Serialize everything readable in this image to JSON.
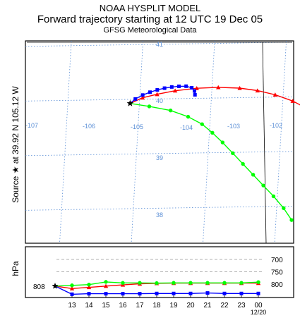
{
  "title": {
    "line1": "NOAA HYSPLIT MODEL",
    "line2": "Forward trajectory starting at 12 UTC 19 Dec 05",
    "line3": "GFSG Meteorological Data"
  },
  "side_label": "Source ★ at 39.92 N 105.12 W",
  "vertical_label": "hPa",
  "start_pressure_label": "808",
  "colors": {
    "red": "#ff0000",
    "blue": "#0000ff",
    "green": "#00ff00",
    "grid": "#5b8fd6",
    "level": "#999999"
  },
  "chart_data": [
    {
      "type": "line",
      "name": "trajectory-map",
      "lon_ticks": [
        "-107",
        "-106",
        "-105",
        "-104",
        "-103",
        "-102"
      ],
      "lat_ticks": [
        "41",
        "40",
        "39",
        "38"
      ],
      "source": {
        "lon": -105.12,
        "lat": 39.92
      },
      "series": [
        {
          "color": "red",
          "marker": "triangle",
          "points": [
            [
              -105.12,
              39.92
            ],
            [
              -104.95,
              40.02
            ],
            [
              -104.75,
              40.08
            ],
            [
              -104.5,
              40.14
            ],
            [
              -104.2,
              40.18
            ],
            [
              -103.9,
              40.19
            ],
            [
              -103.6,
              40.17
            ],
            [
              -103.35,
              40.12
            ],
            [
              -103.1,
              40.04
            ],
            [
              -102.85,
              39.92
            ],
            [
              -102.65,
              39.78
            ],
            [
              -102.5,
              39.62
            ],
            [
              -102.4,
              39.45
            ]
          ]
        },
        {
          "color": "blue",
          "marker": "square",
          "points": [
            [
              -105.12,
              39.92
            ],
            [
              -105.05,
              40.0
            ],
            [
              -104.95,
              40.07
            ],
            [
              -104.85,
              40.12
            ],
            [
              -104.75,
              40.16
            ],
            [
              -104.65,
              40.19
            ],
            [
              -104.55,
              40.21
            ],
            [
              -104.45,
              40.22
            ],
            [
              -104.35,
              40.22
            ],
            [
              -104.27,
              40.19
            ],
            [
              -104.23,
              40.13
            ],
            [
              -104.22,
              40.06
            ]
          ]
        },
        {
          "color": "green",
          "marker": "circle",
          "points": [
            [
              -105.12,
              39.92
            ],
            [
              -104.85,
              39.86
            ],
            [
              -104.55,
              39.78
            ],
            [
              -104.3,
              39.66
            ],
            [
              -104.1,
              39.52
            ],
            [
              -103.95,
              39.36
            ],
            [
              -103.8,
              39.18
            ],
            [
              -103.65,
              38.98
            ],
            [
              -103.5,
              38.78
            ],
            [
              -103.35,
              38.58
            ],
            [
              -103.2,
              38.38
            ],
            [
              -103.05,
              38.18
            ],
            [
              -102.9,
              37.96
            ],
            [
              -102.78,
              37.74
            ]
          ]
        }
      ]
    },
    {
      "type": "line",
      "name": "vertical-profile",
      "x_tick_labels": [
        "13",
        "14",
        "15",
        "16",
        "17",
        "18",
        "19",
        "20",
        "21",
        "22",
        "23",
        "00"
      ],
      "x_sub_label": "12/20",
      "y_ticks": [
        "700",
        "750",
        "800"
      ],
      "y_range_hpa": [
        850,
        670
      ],
      "series": [
        {
          "color": "red",
          "marker": "triangle",
          "values": [
            808,
            818,
            813,
            808,
            803,
            799,
            797,
            796,
            796,
            796,
            796,
            796,
            796
          ]
        },
        {
          "color": "blue",
          "marker": "square",
          "values": [
            808,
            841,
            839,
            839,
            839,
            839,
            838,
            838,
            838,
            836,
            838,
            838,
            838
          ]
        },
        {
          "color": "green",
          "marker": "circle",
          "values": [
            808,
            805,
            802,
            791,
            795,
            795,
            796,
            795,
            795,
            795,
            795,
            795,
            792
          ]
        }
      ]
    }
  ]
}
